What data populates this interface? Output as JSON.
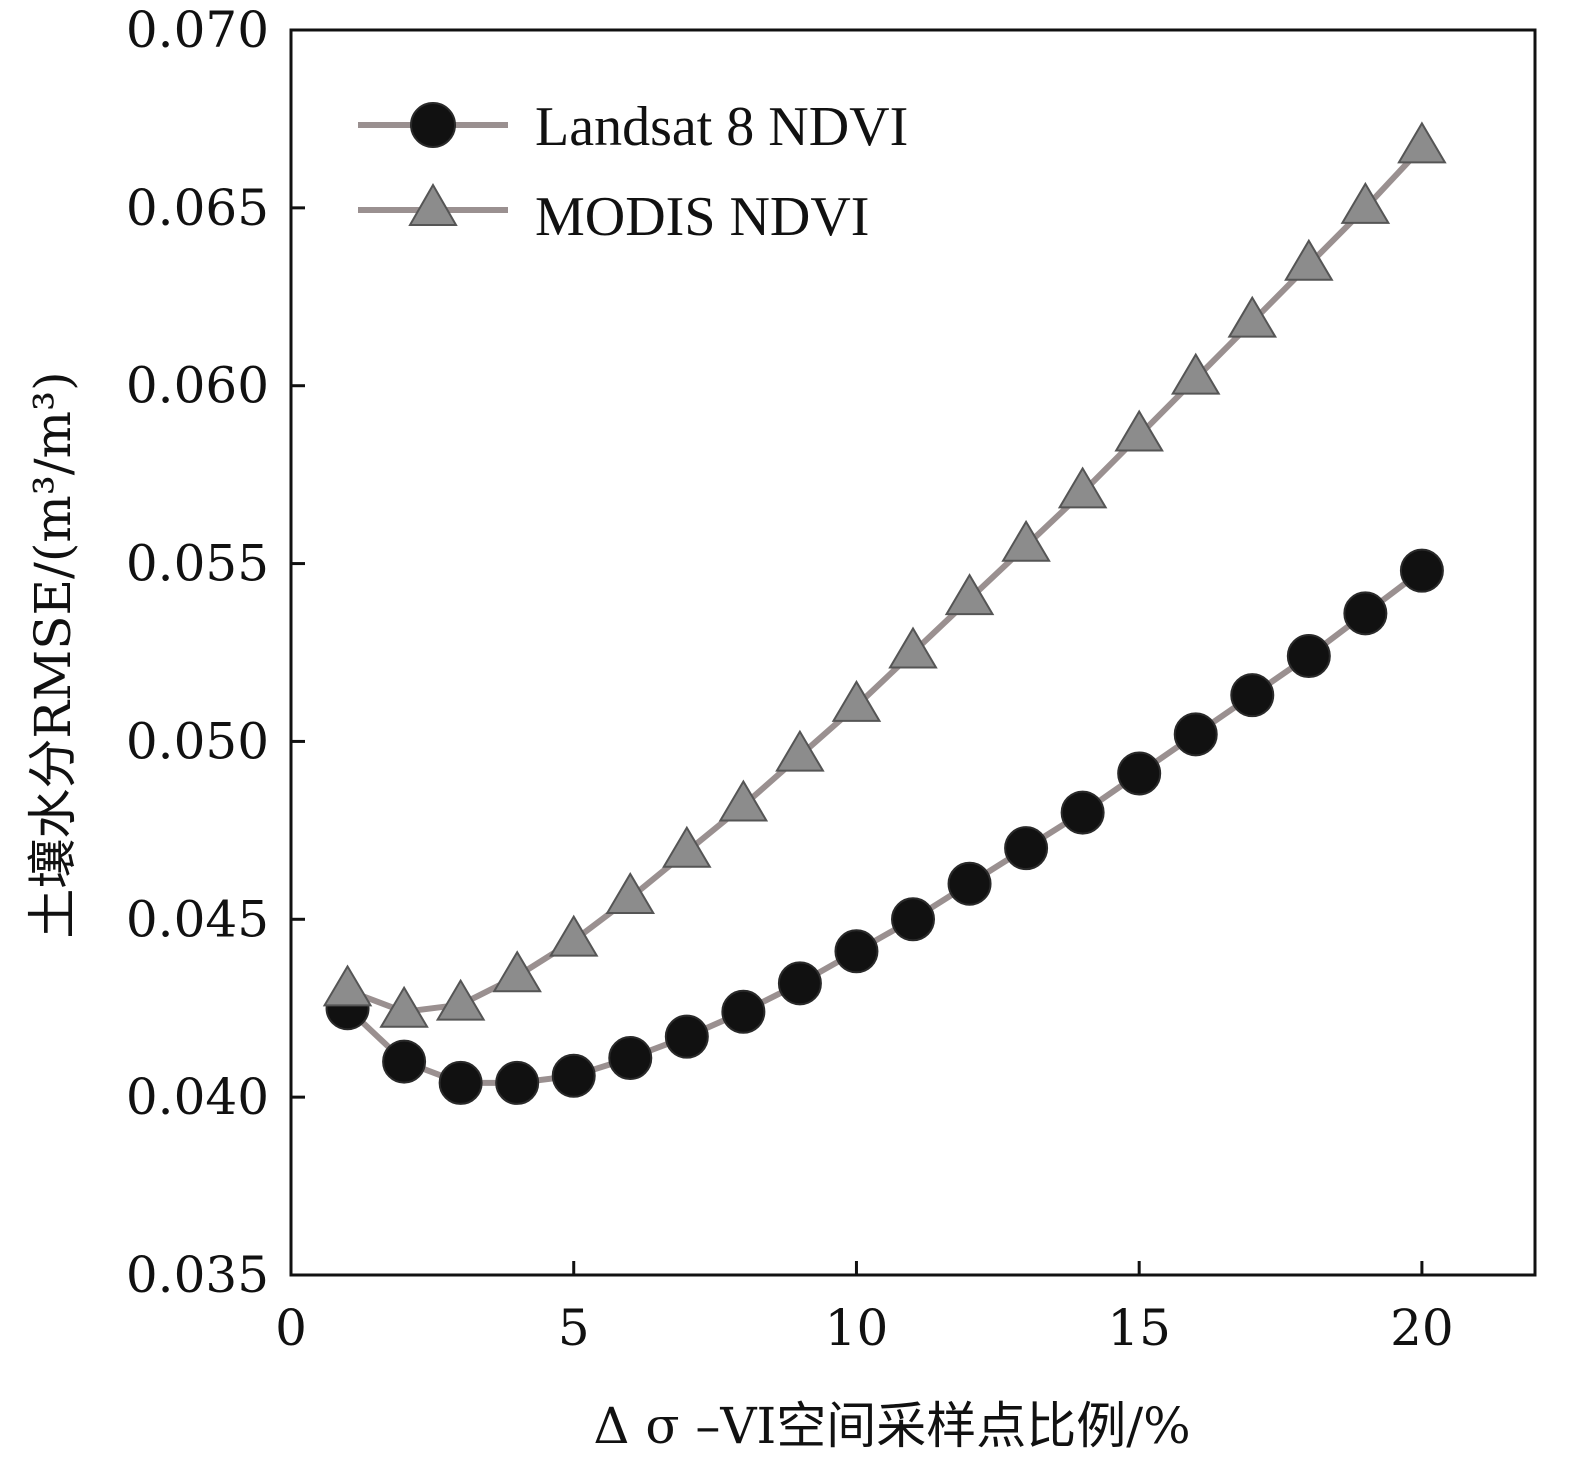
{
  "chart_data": {
    "type": "line",
    "xlabel": "Δ σ –VI空间采样点比例/%",
    "ylabel": "土壤水分RMSE/(m³/m³)",
    "xlim": [
      0,
      22
    ],
    "ylim": [
      0.035,
      0.07
    ],
    "xticks": [
      0,
      5,
      10,
      15,
      20
    ],
    "yticks": [
      0.035,
      0.04,
      0.045,
      0.05,
      0.055,
      0.06,
      0.065,
      0.07
    ],
    "xtick_labels": [
      "0",
      "5",
      "10",
      "15",
      "20"
    ],
    "ytick_labels": [
      "0.035",
      "0.040",
      "0.045",
      "0.050",
      "0.055",
      "0.060",
      "0.065",
      "0.070"
    ],
    "grid": false,
    "legend_position": "top-left",
    "x": [
      1,
      2,
      3,
      4,
      5,
      6,
      7,
      8,
      9,
      10,
      11,
      12,
      13,
      14,
      15,
      16,
      17,
      18,
      19,
      20
    ],
    "series": [
      {
        "name": "Landsat 8 NDVI",
        "marker": "circle",
        "color": "#111111",
        "line_color": "#9a9090",
        "values": [
          0.0425,
          0.041,
          0.0404,
          0.0404,
          0.0406,
          0.0411,
          0.0417,
          0.0424,
          0.0432,
          0.0441,
          0.045,
          0.046,
          0.047,
          0.048,
          0.0491,
          0.0502,
          0.0513,
          0.0524,
          0.0536,
          0.0548
        ]
      },
      {
        "name": "MODIS NDVI",
        "marker": "triangle",
        "color": "#8c8c8c",
        "line_color": "#9a9090",
        "values": [
          0.043,
          0.0424,
          0.0426,
          0.0434,
          0.0444,
          0.0456,
          0.0469,
          0.0482,
          0.0496,
          0.051,
          0.0525,
          0.054,
          0.0555,
          0.057,
          0.0586,
          0.0602,
          0.0618,
          0.0634,
          0.065,
          0.0667
        ]
      }
    ]
  }
}
